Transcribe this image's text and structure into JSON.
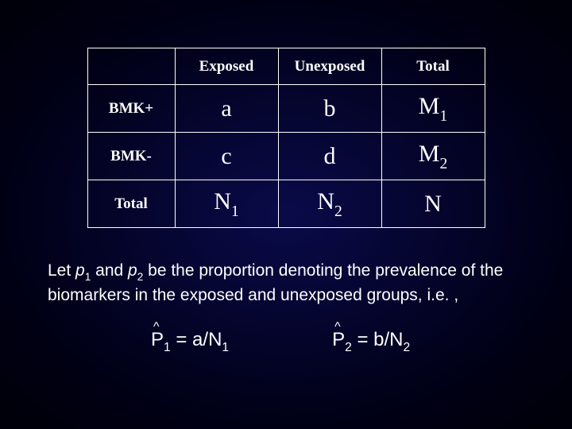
{
  "table": {
    "border_color": "#ffffff",
    "text_color": "#ffffff",
    "header_fontsize": 19,
    "cell_fontsize": 30,
    "columns": {
      "label_width": 110,
      "data_width": 130
    },
    "headers": {
      "exposed": "Exposed",
      "unexposed": "Unexposed",
      "total": "Total"
    },
    "row_labels": {
      "bmk_pos": "BMK+",
      "bmk_neg": "BMK-",
      "total": "Total"
    },
    "cells": {
      "r1c1": "a",
      "r1c2": "b",
      "r1c3_base": "M",
      "r1c3_sub": "1",
      "r2c1": "c",
      "r2c2": "d",
      "r2c3_base": "M",
      "r2c3_sub": "2",
      "r3c1_base": "N",
      "r3c1_sub": "1",
      "r3c2_base": "N",
      "r3c2_sub": "2",
      "r3c3": "N"
    }
  },
  "body": {
    "pre1": "Let ",
    "p1_base": "p",
    "p1_sub": "1",
    "mid1": " and ",
    "p2_base": "p",
    "p2_sub": "2",
    "post": " be the proportion denoting the prevalence of the biomarkers in the exposed and unexposed groups, i.e. ,",
    "fontsize": 21
  },
  "formulas": {
    "fontsize": 24,
    "f1": {
      "hat": "^",
      "base": "P",
      "sub": "1",
      "eq": " = a/N",
      "rhs_sub": "1"
    },
    "f2": {
      "hat": "^",
      "base": "P",
      "sub": "2",
      "eq": " = b/N",
      "rhs_sub": "2"
    }
  },
  "colors": {
    "background_center": "#0a0a4a",
    "background_edge": "#000008",
    "text": "#ffffff"
  }
}
